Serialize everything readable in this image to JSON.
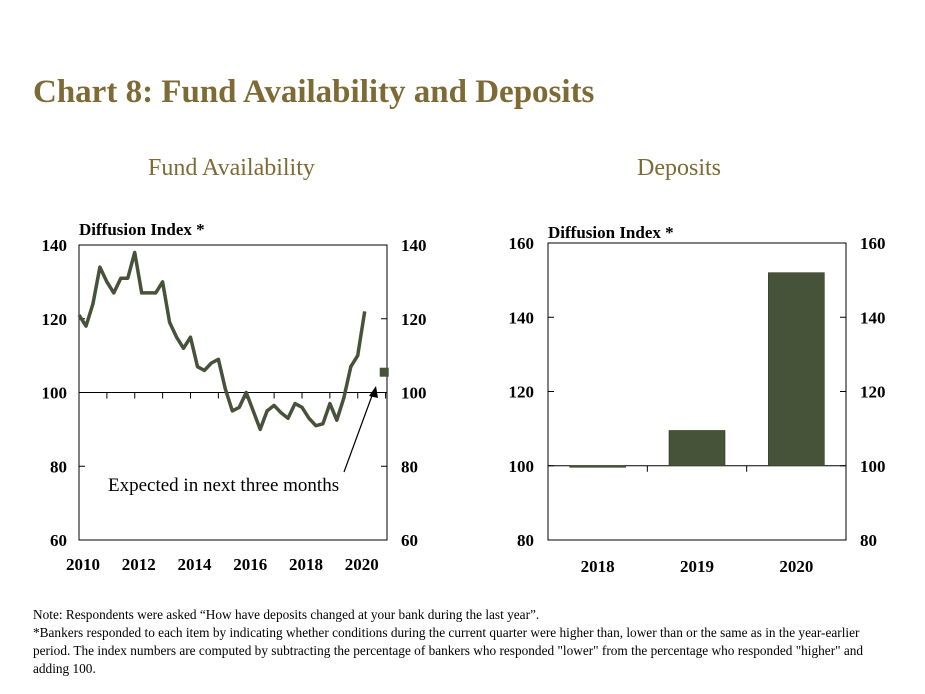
{
  "title": "Chart 8: Fund Availability and Deposits",
  "notes": [
    "Note: Respondents were asked “How have deposits changed at your bank during the last year”.",
    "*Bankers responded to each item by indicating whether conditions during the current quarter were higher than, lower than or the same as in the year-earlier period.  The index numbers are computed by subtracting the percentage of bankers who responded \"lower\"  from the percentage who responded \"higher\" and adding 100."
  ],
  "colors": {
    "title": "#7d6a35",
    "series": "#475339"
  },
  "chart_data": [
    {
      "type": "line",
      "title": "Fund Availability",
      "ylabel": "Diffusion  Index  *",
      "ylim": [
        60,
        140
      ],
      "yticks": [
        60,
        80,
        100,
        120,
        140
      ],
      "xticks": [
        "2010",
        "2012",
        "2014",
        "2016",
        "2018",
        "2020"
      ],
      "xlim": [
        2010,
        2021.05
      ],
      "annotation": "Expected in next three months",
      "series": [
        {
          "x": [
            2010,
            2010.25,
            2010.5,
            2010.75,
            2011,
            2011.25,
            2011.5,
            2011.75,
            2012,
            2012.25,
            2012.5,
            2012.75,
            2013,
            2013.25,
            2013.5,
            2013.75,
            2014,
            2014.25,
            2014.5,
            2014.75,
            2015,
            2015.25,
            2015.5,
            2015.75,
            2016,
            2016.25,
            2016.5,
            2016.75,
            2017,
            2017.25,
            2017.5,
            2017.75,
            2018,
            2018.25,
            2018.5,
            2018.75,
            2019,
            2019.25,
            2019.5,
            2019.75,
            2020,
            2020.25
          ],
          "values": [
            121,
            118,
            124,
            134,
            130,
            127,
            131,
            131,
            138,
            127,
            127,
            127,
            130,
            119,
            115,
            112,
            115,
            107,
            106,
            108,
            109,
            101,
            95,
            96,
            100,
            95,
            90,
            95,
            96.5,
            94.5,
            93,
            97,
            96,
            93,
            91,
            91.5,
            97,
            92.5,
            98.5,
            107,
            110,
            122
          ]
        }
      ],
      "expected": {
        "x": 2020.95,
        "value": 105.5
      }
    },
    {
      "type": "bar",
      "title": "Deposits",
      "ylabel": "Diffusion  Index  *",
      "ylim": [
        80,
        160
      ],
      "yticks": [
        80,
        100,
        120,
        140,
        160
      ],
      "categories": [
        "2018",
        "2019",
        "2020"
      ],
      "values": [
        99.7,
        109.5,
        152
      ]
    }
  ]
}
